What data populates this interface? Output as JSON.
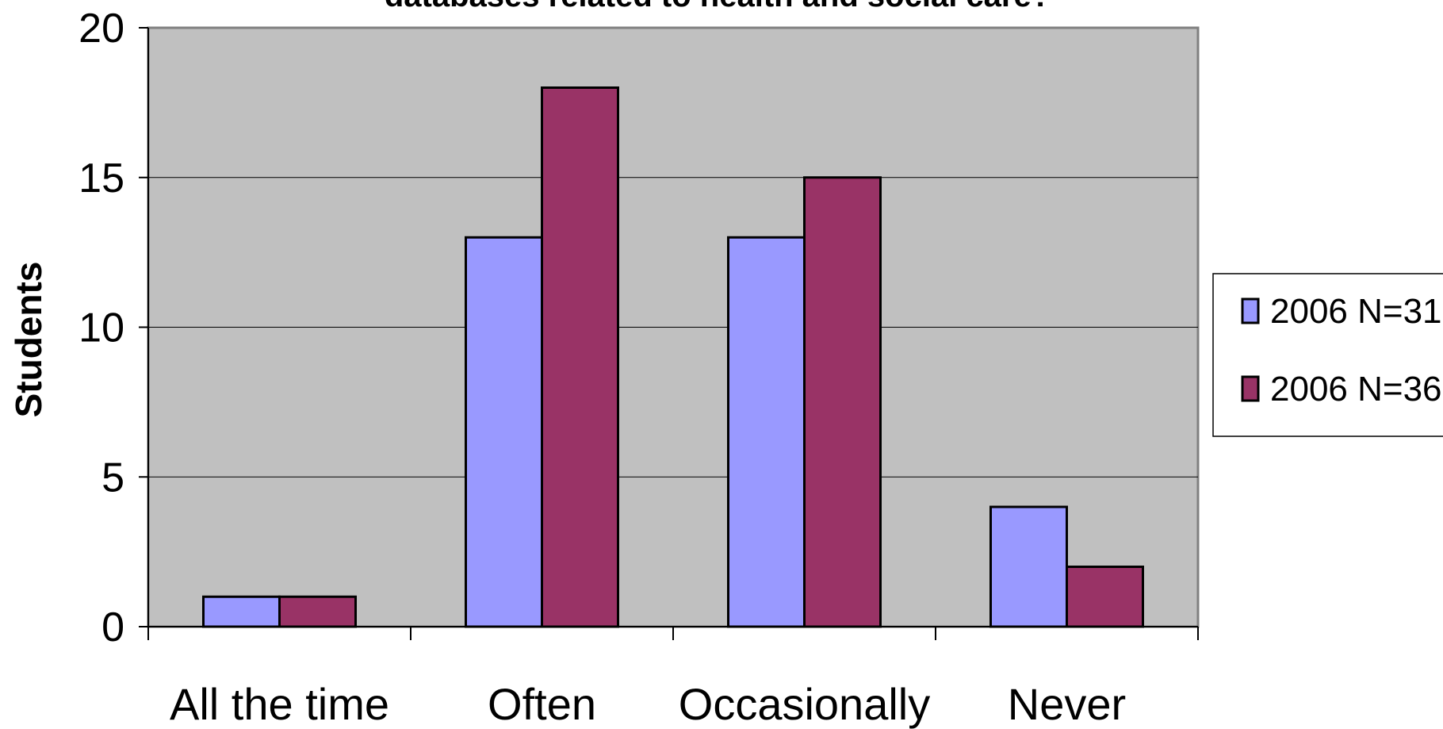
{
  "chart_data": {
    "type": "bar",
    "title": "databases related to health and social care?",
    "ylabel": "Students",
    "xlabel": "",
    "categories": [
      "All the time",
      "Often",
      "Occasionally",
      "Never"
    ],
    "series": [
      {
        "name": "2006 N=31",
        "values": [
          1,
          13,
          13,
          4
        ],
        "color": "#9999ff"
      },
      {
        "name": "2006 N=36",
        "values": [
          1,
          18,
          15,
          2
        ],
        "color": "#993366"
      }
    ],
    "ylim": [
      0,
      20
    ],
    "yticks": [
      "0",
      "5",
      "10",
      "15",
      "20"
    ],
    "grid": true,
    "plot_background": "#c0c0c0",
    "legend": "right"
  }
}
